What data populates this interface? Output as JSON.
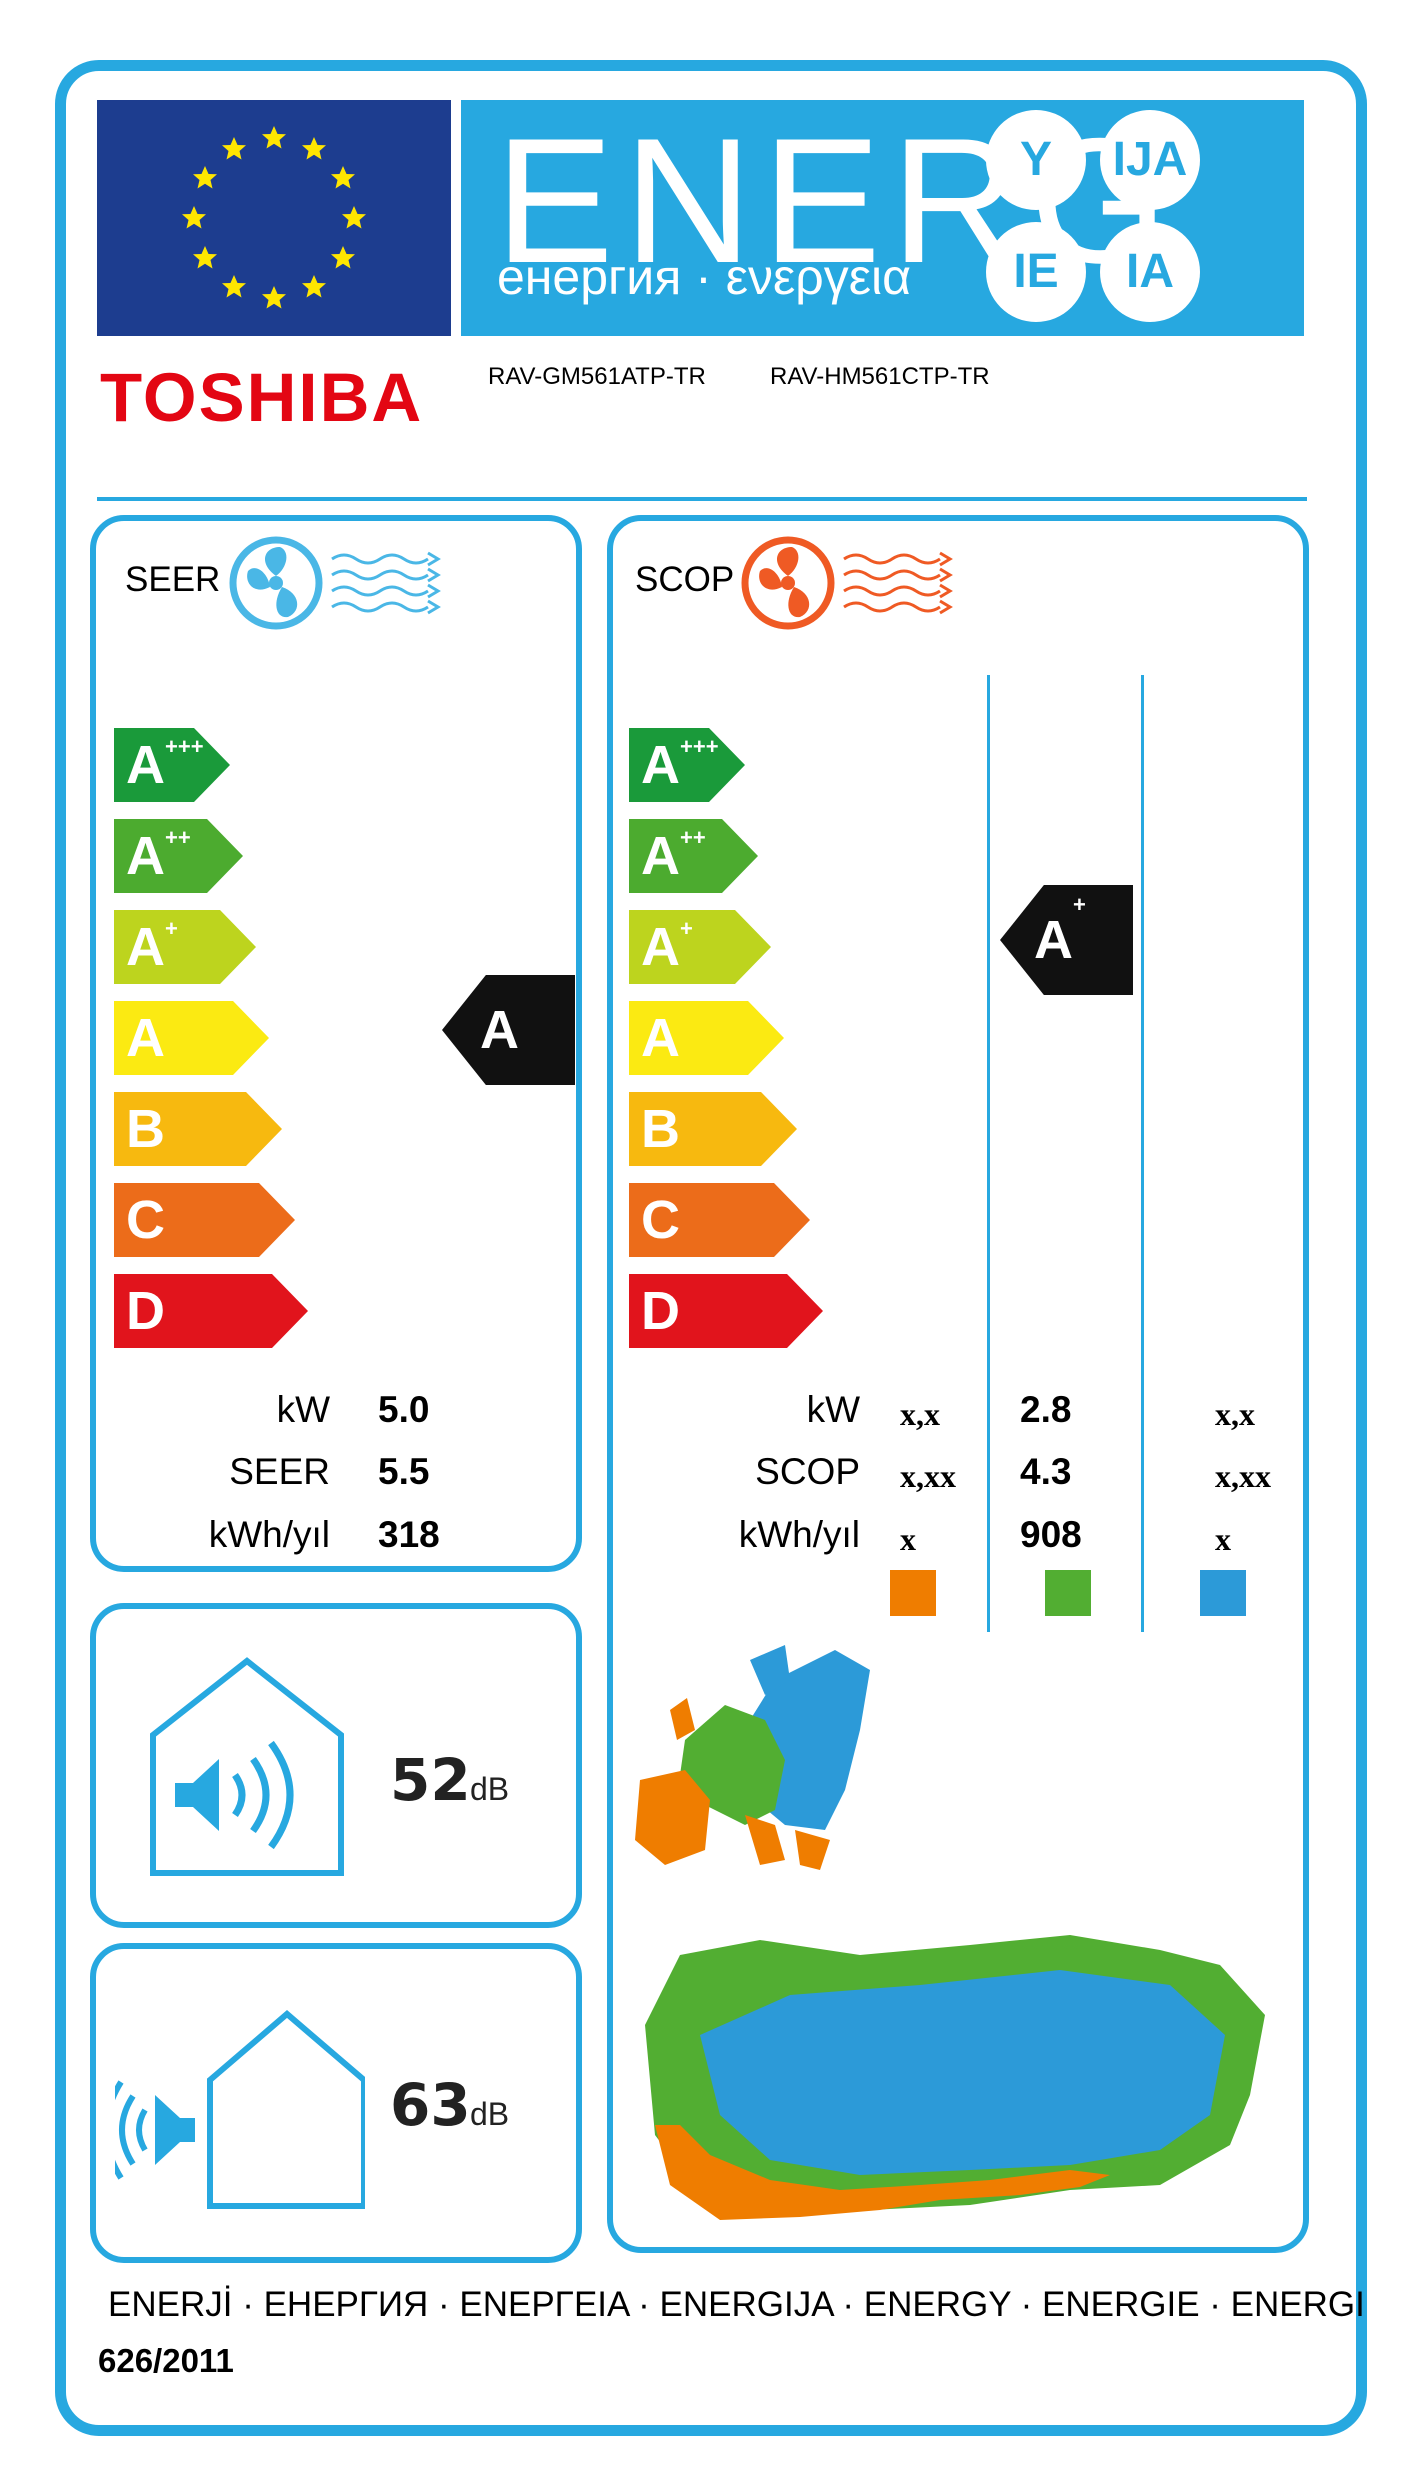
{
  "header": {
    "energy_word": "ENERG",
    "energy_sub": "енергия · ενεργεια",
    "suffixes": [
      "Y",
      "IJA",
      "IE",
      "IA"
    ],
    "brand": "TOSHIBA",
    "indoor_model": "RAV-GM561ATP-TR",
    "outdoor_model": "RAV-HM561CTP-TR"
  },
  "scale": [
    {
      "base": "A",
      "sup": "+++",
      "color": "#1a9a3a"
    },
    {
      "base": "A",
      "sup": "++",
      "color": "#4cab2f"
    },
    {
      "base": "A",
      "sup": "+",
      "color": "#bdd41e"
    },
    {
      "base": "A",
      "sup": "",
      "color": "#fbea12"
    },
    {
      "base": "B",
      "sup": "",
      "color": "#f7b90f"
    },
    {
      "base": "C",
      "sup": "",
      "color": "#ec6c1a"
    },
    {
      "base": "D",
      "sup": "",
      "color": "#e1141c"
    }
  ],
  "cooling": {
    "label": "SEER",
    "class_base": "A",
    "class_sup": "",
    "rows": [
      {
        "label": "kW",
        "value": "5.0"
      },
      {
        "label": "SEER",
        "value": "5.5"
      },
      {
        "label": "kWh/yıl",
        "value": "318"
      }
    ]
  },
  "heating": {
    "label": "SCOP",
    "class_base": "A",
    "class_sup": "+",
    "rows": [
      {
        "label": "kW",
        "warmer": "x,x",
        "average": "2.8",
        "colder": "x,x"
      },
      {
        "label": "SCOP",
        "warmer": "x,xx",
        "average": "4.3",
        "colder": "x,xx"
      },
      {
        "label": "kWh/yıl",
        "warmer": "x",
        "average": "908",
        "colder": "x"
      }
    ],
    "zone_colors": {
      "warmer": "#ef7d00",
      "average": "#52ae32",
      "colder": "#2c9ad8"
    }
  },
  "noise": {
    "indoor_value": "52",
    "outdoor_value": "63",
    "unit": "dB"
  },
  "footer": {
    "languages": "ENERJİ · ЕНЕРГИЯ · ЕΝΕΡΓΕΙΑ · ENERGIJA · ENERGY · ENERGIE · ENERGI",
    "regulation": "626/2011"
  },
  "colors": {
    "frame": "#27a8e0",
    "eu_blue": "#1d3d8f",
    "star": "#ffe600",
    "brand_red": "#e30613"
  }
}
